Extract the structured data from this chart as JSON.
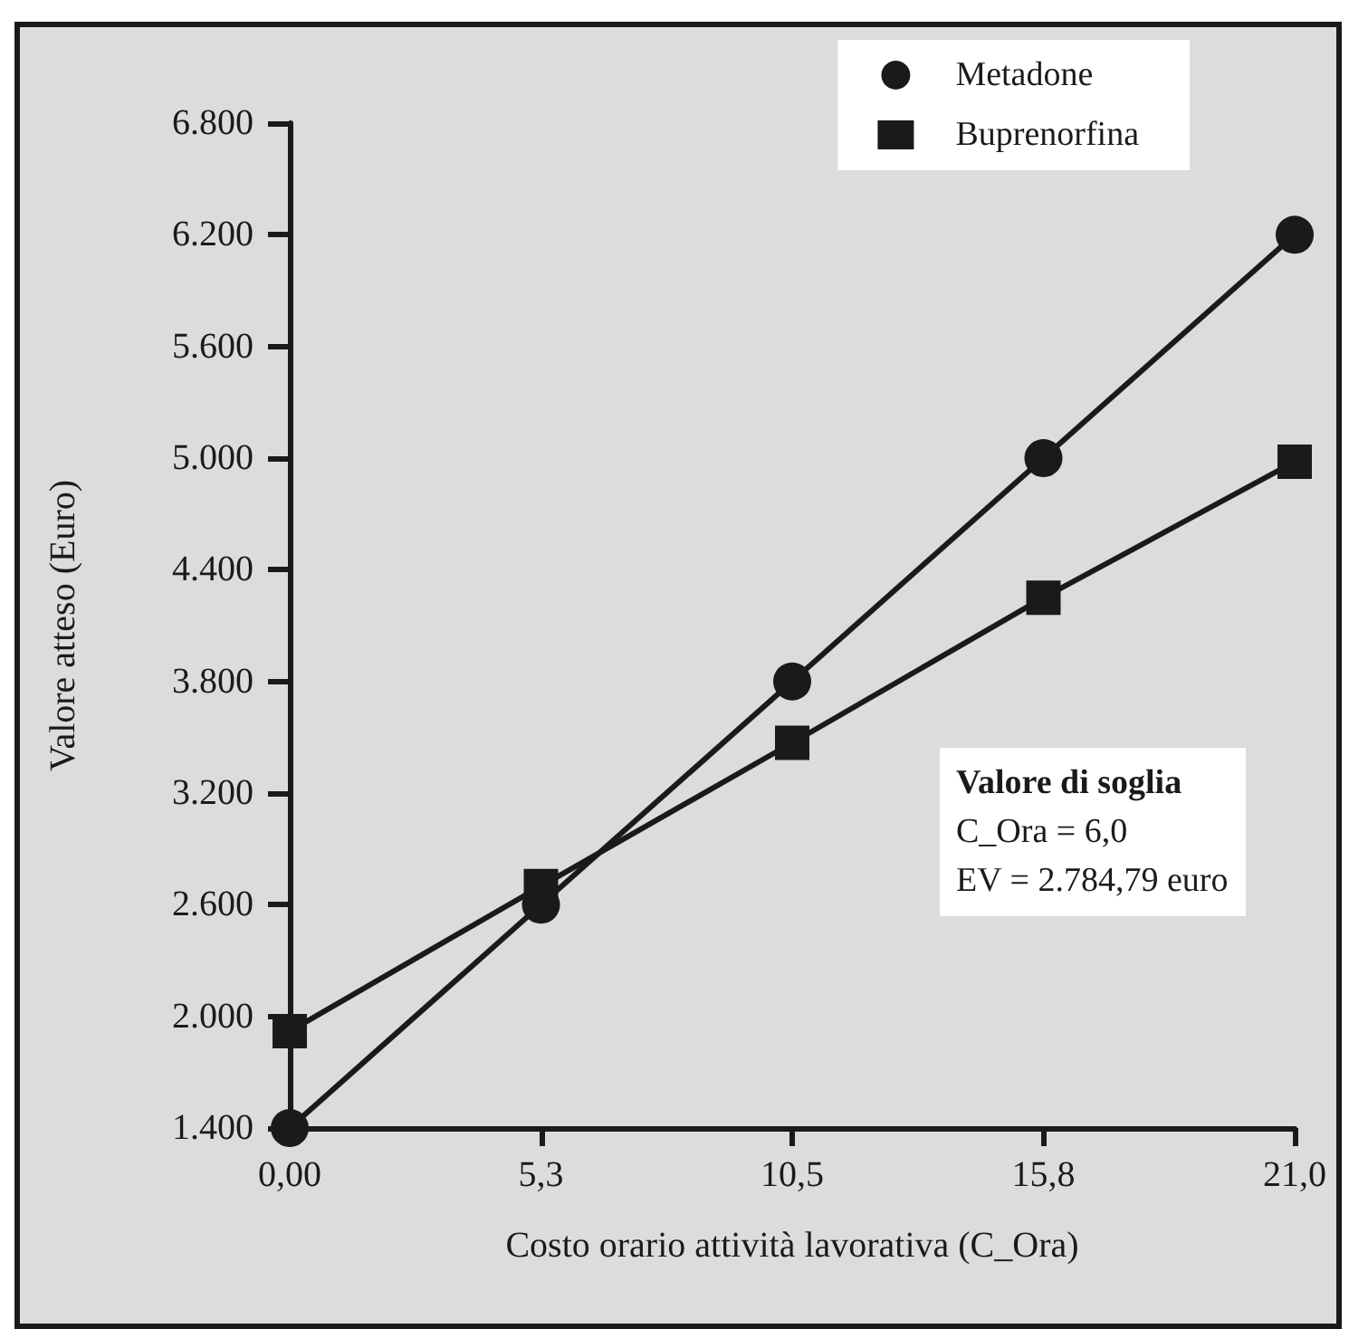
{
  "chart_data": {
    "type": "line",
    "xlabel": "Costo orario attività lavorativa (C_Ora)",
    "ylabel": "Valore atteso (Euro)",
    "x": [
      0,
      5.25,
      10.5,
      15.75,
      21
    ],
    "series": [
      {
        "name": "Metadone",
        "color": "#1a1a1a",
        "marker": "circle",
        "values": [
          1400,
          2600,
          3800,
          5000,
          6200
        ]
      },
      {
        "name": "Buprenorfina",
        "color": "#1a1a1a",
        "marker": "square",
        "values": [
          1920,
          2700,
          3470,
          4250,
          4980
        ]
      }
    ],
    "xlim": [
      0,
      21
    ],
    "xticks": [
      {
        "value": 0,
        "label": "0,00"
      },
      {
        "value": 5.25,
        "label": "5,3"
      },
      {
        "value": 10.5,
        "label": "10,5"
      },
      {
        "value": 15.75,
        "label": "15,8"
      },
      {
        "value": 21,
        "label": "21,0"
      }
    ],
    "ylim": [
      1400,
      6800
    ],
    "yticks": [
      {
        "value": 1400,
        "label": "1.400"
      },
      {
        "value": 2000,
        "label": "2.000"
      },
      {
        "value": 2600,
        "label": "2.600"
      },
      {
        "value": 3200,
        "label": "3.200"
      },
      {
        "value": 3800,
        "label": "3.800"
      },
      {
        "value": 4400,
        "label": "4.400"
      },
      {
        "value": 5000,
        "label": "5.000"
      },
      {
        "value": 5600,
        "label": "5.600"
      },
      {
        "value": 6200,
        "label": "6.200"
      },
      {
        "value": 6800,
        "label": "6.800"
      }
    ],
    "annotations": [
      "Valore di soglia",
      "C_Ora = 6,0",
      "EV = 2.784,79 euro"
    ],
    "legend": "top right",
    "grid": false,
    "line_style": "solid"
  }
}
